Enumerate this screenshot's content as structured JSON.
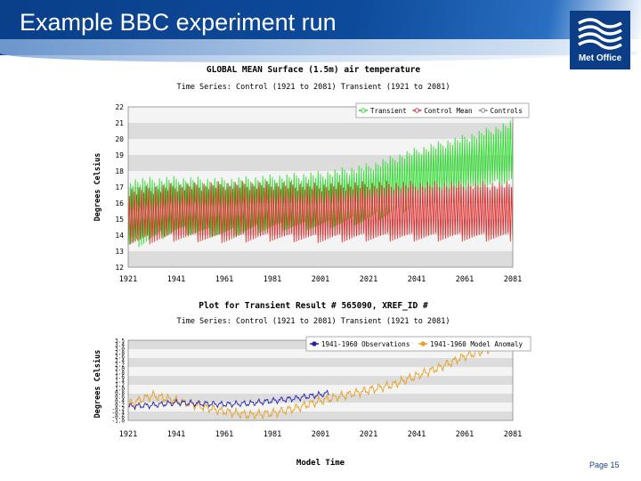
{
  "slide": {
    "title": "Example BBC experiment run",
    "logo_text": "Met Office",
    "page_label": "Page 15"
  },
  "chart_data": [
    {
      "type": "line",
      "title": "GLOBAL MEAN Surface (1.5m) air temperature",
      "subtitle": "Time Series: Control (1921 to 2081)  Transient (1921 to 2081)",
      "ylabel": "Degrees Celsius",
      "xlabel": "",
      "xlim": [
        1921,
        2081
      ],
      "ylim": [
        12,
        22
      ],
      "x_ticks": [
        "1921",
        "1941",
        "1961",
        "1981",
        "2001",
        "2021",
        "2041",
        "2061",
        "2081"
      ],
      "y_ticks": [
        "12",
        "13",
        "14",
        "15",
        "16",
        "17",
        "18",
        "19",
        "20",
        "21",
        "22"
      ],
      "grid": "banded",
      "legend_position": "top-right",
      "series": [
        {
          "name": "Transient",
          "color": "#33dd33",
          "x": [
            1921,
            1941,
            1961,
            1981,
            2001,
            2021,
            2041,
            2061,
            2081
          ],
          "low": [
            13.0,
            14.0,
            13.8,
            14.2,
            14.3,
            14.7,
            15.6,
            16.3,
            17.2
          ],
          "high": [
            17.6,
            17.7,
            17.6,
            17.8,
            18.0,
            18.5,
            19.5,
            20.3,
            21.2
          ]
        },
        {
          "name": "Control Mean",
          "color": "#dd3333",
          "x": [
            1921,
            1941,
            1961,
            1981,
            2001,
            2021,
            2041,
            2061,
            2081
          ],
          "low": [
            13.3,
            13.6,
            13.5,
            13.6,
            13.5,
            13.6,
            13.6,
            13.6,
            13.6
          ],
          "high": [
            17.0,
            17.3,
            17.4,
            17.4,
            17.3,
            17.4,
            17.4,
            17.4,
            17.4
          ]
        },
        {
          "name": "Controls",
          "color": "#888888",
          "x": [],
          "low": [],
          "high": []
        }
      ]
    },
    {
      "type": "line",
      "title": "Plot for Transient Result # 565090, XREF_ID #",
      "subtitle": "Time Series: Control (1921 to 2081)  Transient (1921 to 2081)",
      "ylabel": "Degrees Celsius",
      "xlabel": "Model Time",
      "xlim": [
        1921,
        2081
      ],
      "ylim": [
        -1.0,
        3.5
      ],
      "x_ticks": [
        "1921",
        "1941",
        "1961",
        "1981",
        "2001",
        "2021",
        "2041",
        "2061",
        "2081"
      ],
      "y_ticks": [
        "-1.0",
        "-0.6",
        "-0.4",
        "-0.2",
        "0.2",
        "0.4",
        "0.6",
        "0.8",
        "1.0",
        "1.2",
        "1.4",
        "1.6",
        "1.8",
        "2.0",
        "2.2",
        "2.4",
        "2.6",
        "2.8",
        "3.0",
        "3.4",
        "3.5"
      ],
      "grid": "banded",
      "legend_position": "top-right",
      "series": [
        {
          "name": "1941-1960 Observations",
          "color": "#2222aa",
          "x": [
            1921,
            1931,
            1941,
            1951,
            1961,
            1971,
            1981,
            1991,
            2001,
            2005
          ],
          "y": [
            -0.2,
            -0.15,
            0.0,
            -0.05,
            -0.1,
            -0.05,
            0.1,
            0.25,
            0.45,
            0.55
          ]
        },
        {
          "name": "1941-1960 Model Anomaly",
          "color": "#e8a020",
          "x": [
            1921,
            1931,
            1941,
            1951,
            1961,
            1971,
            1981,
            1991,
            2001,
            2011,
            2021,
            2031,
            2041,
            2051,
            2061,
            2071,
            2081
          ],
          "y": [
            -0.1,
            0.4,
            0.1,
            -0.2,
            -0.5,
            -0.7,
            -0.6,
            -0.3,
            0.1,
            0.4,
            0.7,
            1.0,
            1.5,
            2.0,
            2.6,
            3.0,
            3.4
          ]
        }
      ]
    }
  ]
}
